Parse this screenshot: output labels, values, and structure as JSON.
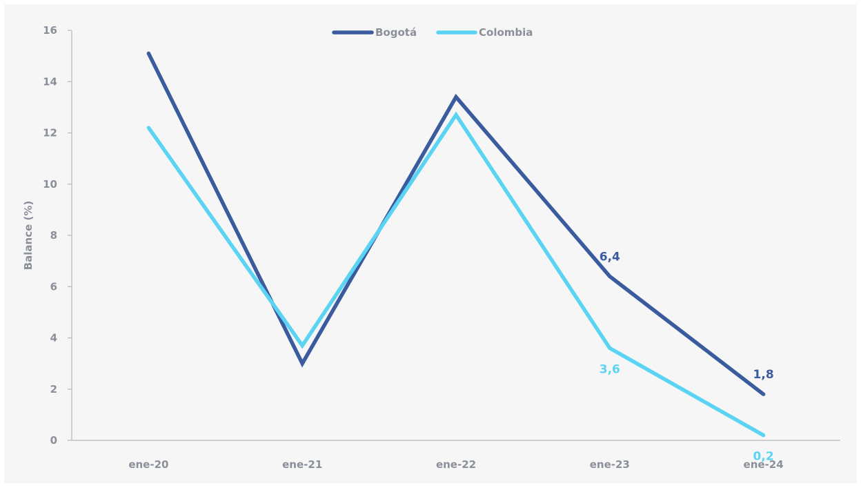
{
  "chart_data": {
    "type": "line",
    "title": "",
    "xlabel": "",
    "ylabel": "Balance (%)",
    "categories": [
      "ene-20",
      "ene-21",
      "ene-22",
      "ene-23",
      "ene-24"
    ],
    "ylim": [
      0,
      16
    ],
    "yticks": [
      0,
      2,
      4,
      6,
      8,
      10,
      12,
      14,
      16
    ],
    "grid": false,
    "legend_position": "top-center",
    "series": [
      {
        "name": "Bogotá",
        "color": "#3a5c9e",
        "values": [
          15.1,
          3.0,
          13.4,
          6.4,
          1.8
        ],
        "data_labels": [
          "",
          "",
          "",
          "6,4",
          "1,8"
        ]
      },
      {
        "name": "Colombia",
        "color": "#5bd4f4",
        "values": [
          12.2,
          3.7,
          12.7,
          3.6,
          0.2
        ],
        "data_labels": [
          "",
          "",
          "",
          "3,6",
          "0,2"
        ]
      }
    ]
  }
}
